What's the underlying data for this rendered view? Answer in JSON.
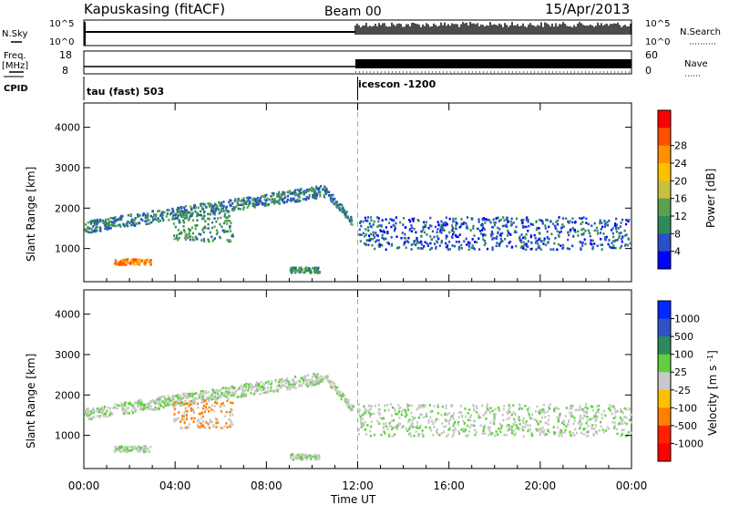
{
  "header": {
    "station": "Kapuskasing (fitACF)",
    "beam": "Beam 00",
    "date": "15/Apr/2013"
  },
  "panel_labels": {
    "nsky": "N.Sky",
    "freq_line1": "Freq.",
    "freq_line2": "[MHz]",
    "cpid": "CPID",
    "nsearch": "N.Search",
    "nave": "Nave"
  },
  "noise_axis": {
    "left_top": "10^5",
    "left_bottom": "10^0",
    "right_top": "10^5",
    "right_bottom": "10^0"
  },
  "freq_axis": {
    "left_top": "18",
    "left_bottom": "8",
    "right_top": "60",
    "right_bottom": "0"
  },
  "cpid_segments": [
    {
      "label": "tau (fast) 503",
      "start_hour": 0
    },
    {
      "label": "icescon -1200",
      "start_hour": 12
    }
  ],
  "time_axis": {
    "xlabel": "Time UT",
    "ticks": [
      "00:00",
      "04:00",
      "08:00",
      "12:00",
      "16:00",
      "20:00",
      "00:00"
    ],
    "tick_hours": [
      0,
      4,
      8,
      12,
      16,
      20,
      24
    ]
  },
  "range_axis": {
    "ylabel": "Slant Range [km]",
    "ticks": [
      "1000",
      "2000",
      "3000",
      "4000"
    ],
    "tick_values": [
      1000,
      2000,
      3000,
      4000
    ],
    "ylim": [
      180,
      4600
    ]
  },
  "power_colorbar": {
    "label": "Power [dB]",
    "ticks": [
      "4",
      "8",
      "12",
      "16",
      "20",
      "24",
      "28"
    ],
    "colors": [
      "#0000ff",
      "#2850c8",
      "#2e8a5a",
      "#5aa050",
      "#c8c040",
      "#ffc000",
      "#ff9000",
      "#ff5000",
      "#ff0000"
    ]
  },
  "velocity_colorbar": {
    "label": "Velocity [m s^-1]",
    "ticks": [
      "1000",
      "500",
      "100",
      "25",
      "-25",
      "-100",
      "-500",
      "-1000"
    ],
    "colors": [
      "#0028ff",
      "#3050c8",
      "#2e8a5a",
      "#60d040",
      "#c8c8c8",
      "#ffc000",
      "#ff8000",
      "#ff2000",
      "#ff0000"
    ]
  },
  "chart_data": {
    "type": "heatmap",
    "x_unit": "hours UT",
    "y_unit": "km",
    "xlim": [
      0,
      24
    ],
    "ylim": [
      180,
      4600
    ],
    "cpid_change_hour": 12,
    "scatter_regions": [
      {
        "name": "main band",
        "hour_start": 0.0,
        "hour_end": 11.8,
        "range_start": 1500,
        "range_end": 2500,
        "power_db": 8,
        "velocity": 20
      },
      {
        "name": "lower patch",
        "hour_start": 3.9,
        "hour_end": 6.5,
        "range_start": 1200,
        "range_end": 1900,
        "power_db": 10,
        "velocity": -300
      },
      {
        "name": "near range patch",
        "hour_start": 1.3,
        "hour_end": 2.9,
        "range_start": 620,
        "range_end": 760,
        "power_db": 24,
        "velocity": 20
      },
      {
        "name": "small patch",
        "hour_start": 9.0,
        "hour_end": 10.3,
        "range_start": 420,
        "range_end": 560,
        "power_db": 10,
        "velocity": 20
      },
      {
        "name": "post 12UT band",
        "hour_start": 12.0,
        "hour_end": 24.0,
        "range_start": 1000,
        "range_end": 1800,
        "power_db": 6,
        "velocity": 20
      }
    ]
  }
}
